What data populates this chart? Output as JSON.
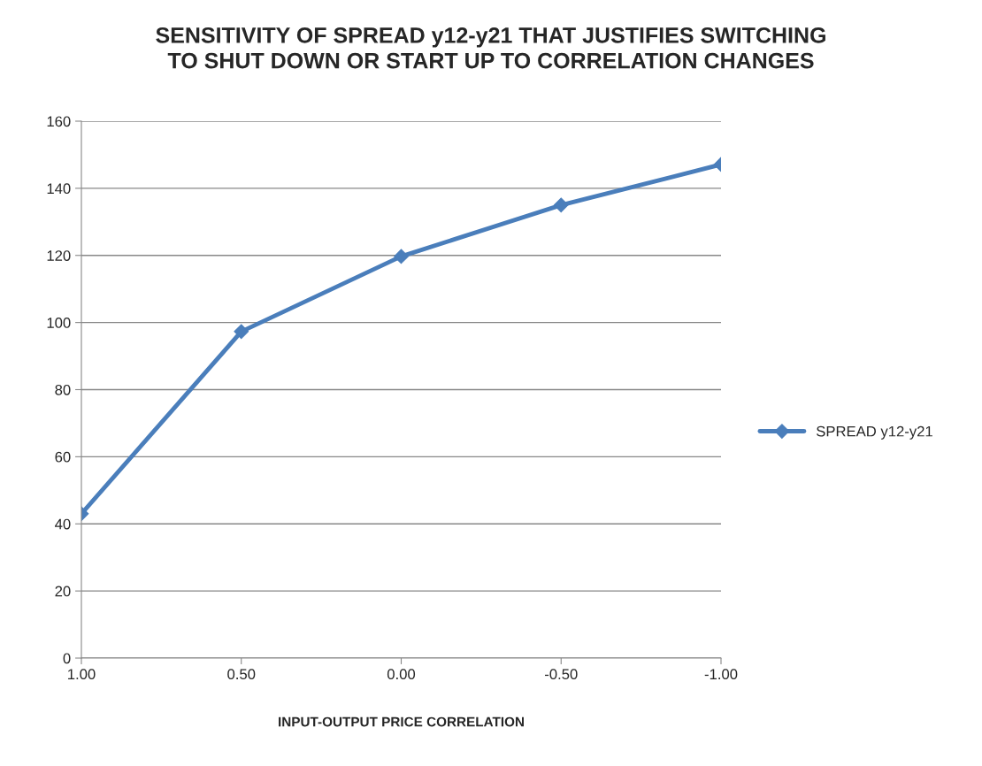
{
  "chart_data": {
    "type": "line",
    "title": "SENSITIVITY OF SPREAD y12-y21 THAT JUSTIFIES SWITCHING\nTO SHUT DOWN OR START UP TO CORRELATION CHANGES",
    "xlabel": "INPUT-OUTPUT PRICE CORRELATION",
    "categories": [
      "1.00",
      "0.50",
      "0.00",
      "-0.50",
      "-1.00"
    ],
    "series": [
      {
        "name": "SPREAD y12-y21",
        "color": "#4a7ebb",
        "values": [
          43,
          97.3,
          119.7,
          135,
          147.1
        ]
      }
    ],
    "ylim": [
      0,
      160
    ],
    "yticks": [
      0,
      20,
      40,
      60,
      80,
      100,
      120,
      140,
      160
    ],
    "grid": "y",
    "legend": "right",
    "marker": "diamond",
    "line_style": "solid"
  }
}
